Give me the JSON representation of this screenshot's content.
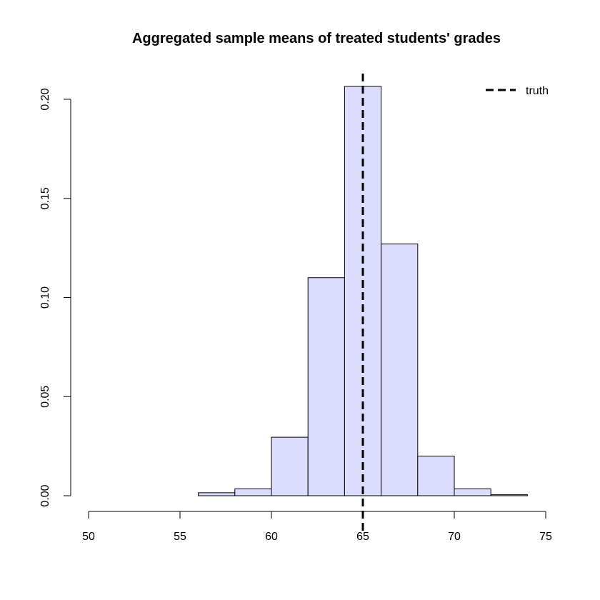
{
  "chart_data": {
    "type": "bar",
    "title": "Aggregated sample means of treated students' grades",
    "xlabel": "",
    "ylabel": "",
    "xlim": [
      50,
      75
    ],
    "ylim": [
      0,
      0.2
    ],
    "x_ticks": [
      50,
      55,
      60,
      65,
      70,
      75
    ],
    "y_ticks": [
      0.0,
      0.05,
      0.1,
      0.15,
      0.2
    ],
    "x_tick_labels": [
      "50",
      "55",
      "60",
      "65",
      "70",
      "75"
    ],
    "y_tick_labels": [
      "0.00",
      "0.05",
      "0.10",
      "0.15",
      "0.20"
    ],
    "bins": [
      {
        "start": 56,
        "end": 58,
        "density": 0.0015
      },
      {
        "start": 58,
        "end": 60,
        "density": 0.0035
      },
      {
        "start": 60,
        "end": 62,
        "density": 0.0295
      },
      {
        "start": 62,
        "end": 64,
        "density": 0.11
      },
      {
        "start": 64,
        "end": 66,
        "density": 0.2065
      },
      {
        "start": 66,
        "end": 68,
        "density": 0.127
      },
      {
        "start": 68,
        "end": 70,
        "density": 0.02
      },
      {
        "start": 70,
        "end": 72,
        "density": 0.0035
      },
      {
        "start": 72,
        "end": 74,
        "density": 0.0005
      }
    ],
    "bar_fill": "#dcdcfe",
    "bar_stroke": "#000000",
    "reference_line": {
      "x": 65,
      "label": "truth",
      "style": "dashed",
      "color": "#000000"
    },
    "legend": {
      "placement": "top-right",
      "entries": [
        "truth"
      ]
    },
    "grid": false
  }
}
